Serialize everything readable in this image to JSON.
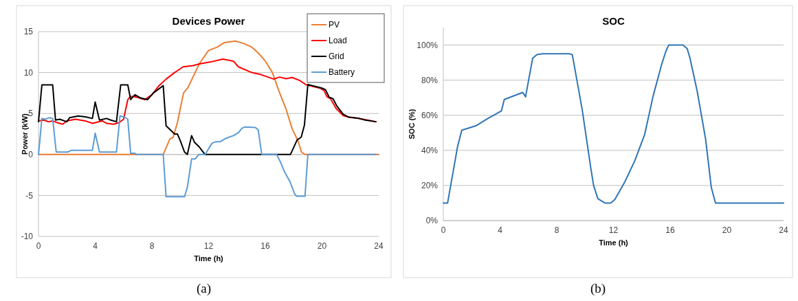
{
  "chart_data": [
    {
      "type": "line",
      "title": "Devices Power",
      "xlabel": "Time (h)",
      "ylabel": "Power (kW)",
      "xlim": [
        0,
        24
      ],
      "xticks": [
        0,
        4,
        8,
        12,
        16,
        20,
        24
      ],
      "ylim": [
        -10,
        15
      ],
      "yticks": [
        -10,
        -5,
        0,
        5,
        10,
        15
      ],
      "grid": "y",
      "legend": "top right",
      "marker": "none",
      "line_style": "solid",
      "annotations": [
        "(a)"
      ],
      "series": [
        {
          "name": "PV",
          "color": "#ed7d31",
          "x": [
            0,
            8.8,
            9.27,
            9.5,
            9.8,
            10.23,
            10.55,
            11.35,
            12.0,
            12.6,
            13.1,
            13.9,
            14.55,
            15.05,
            15.5,
            16.0,
            16.5,
            16.95,
            17.45,
            17.9,
            18.3,
            18.55,
            18.8,
            24
          ],
          "values": [
            0,
            0,
            1.9,
            2.1,
            3.9,
            7.5,
            8.2,
            11.1,
            12.7,
            13.1,
            13.65,
            13.85,
            13.5,
            13.1,
            12.4,
            11.4,
            10.0,
            7.8,
            5.6,
            3.1,
            1.7,
            0.3,
            0,
            0
          ]
        },
        {
          "name": "Load",
          "color": "#ff0000",
          "x": [
            0,
            0.37,
            0.7,
            1.0,
            1.3,
            1.7,
            2.0,
            2.6,
            3.3,
            3.8,
            4.5,
            4.8,
            5.3,
            5.7,
            6.0,
            6.3,
            6.5,
            6.9,
            7.5,
            8.0,
            8.5,
            9.0,
            9.6,
            10.2,
            10.9,
            11.35,
            12.15,
            13.0,
            13.75,
            14.1,
            15.05,
            15.7,
            16.6,
            17.0,
            17.45,
            17.9,
            18.4,
            18.9,
            19.85,
            20.15,
            20.35,
            20.6,
            21.0,
            21.5,
            21.9,
            22.6,
            23.8
          ],
          "values": [
            4.1,
            4.2,
            4.0,
            4.1,
            3.9,
            3.7,
            4.1,
            4.3,
            4.1,
            3.8,
            4.1,
            3.8,
            3.7,
            3.9,
            4.3,
            6.7,
            7.1,
            7.0,
            6.7,
            7.3,
            8.4,
            9.2,
            10.0,
            10.7,
            10.85,
            11.05,
            11.3,
            11.65,
            11.4,
            10.7,
            10.0,
            9.75,
            9.2,
            9.45,
            9.25,
            9.4,
            9.05,
            8.5,
            8.1,
            7.8,
            7.05,
            6.8,
            5.6,
            4.75,
            4.55,
            4.4,
            4.0
          ]
        },
        {
          "name": "Grid",
          "color": "#000000",
          "x": [
            0,
            0.24,
            1.0,
            1.2,
            1.5,
            2.0,
            2.2,
            2.8,
            3.3,
            3.8,
            4.0,
            4.3,
            4.8,
            5.1,
            5.5,
            5.8,
            6.3,
            6.5,
            6.8,
            7.2,
            7.7,
            8.1,
            8.8,
            9.0,
            9.6,
            9.8,
            10.0,
            10.3,
            10.5,
            10.8,
            11.0,
            11.35,
            11.75,
            17.77,
            18.0,
            18.25,
            18.53,
            18.76,
            19.0,
            20.0,
            20.25,
            20.5,
            20.78,
            21.05,
            21.5,
            21.9,
            22.6,
            23.05,
            23.8
          ],
          "values": [
            4.0,
            8.5,
            8.5,
            4.2,
            4.3,
            4.0,
            4.5,
            4.7,
            4.6,
            4.4,
            6.4,
            4.2,
            4.4,
            4.2,
            4.0,
            8.5,
            8.5,
            6.7,
            7.3,
            6.9,
            6.7,
            7.5,
            8.4,
            3.5,
            2.5,
            2.5,
            1.7,
            0.3,
            0,
            2.3,
            1.5,
            0.9,
            0,
            0,
            0.85,
            1.8,
            2.1,
            3.6,
            8.55,
            8.1,
            7.9,
            7.0,
            6.8,
            5.9,
            4.9,
            4.55,
            4.4,
            4.2,
            4.0
          ]
        },
        {
          "name": "Battery",
          "color": "#5b9bd5",
          "x": [
            0,
            0.24,
            0.48,
            0.77,
            1.0,
            1.25,
            2.05,
            2.3,
            3.8,
            4.0,
            4.3,
            5.5,
            5.75,
            6.05,
            6.3,
            6.5,
            6.8,
            6.95,
            8.8,
            9.0,
            10.3,
            10.5,
            10.8,
            11.05,
            11.3,
            11.75,
            12.25,
            12.5,
            12.8,
            13.25,
            13.75,
            14.1,
            14.35,
            14.55,
            15.3,
            15.5,
            15.75,
            16.8,
            17.05,
            17.35,
            17.75,
            18.05,
            18.2,
            18.8,
            19.0,
            23.8
          ],
          "values": [
            0,
            4.4,
            4.3,
            4.5,
            4.4,
            0.3,
            0.3,
            0.5,
            0.5,
            2.6,
            0.3,
            0.3,
            4.7,
            4.6,
            4.3,
            0.15,
            0.15,
            0,
            0,
            -5.15,
            -5.15,
            -4.0,
            -0.55,
            -0.55,
            0,
            0,
            1.4,
            1.55,
            1.55,
            2.0,
            2.3,
            2.65,
            3.2,
            3.35,
            3.3,
            3.0,
            0,
            0,
            -0.85,
            -2.1,
            -3.35,
            -4.75,
            -5.1,
            -5.1,
            0,
            0
          ]
        }
      ]
    },
    {
      "type": "line",
      "title": "SOC",
      "xlabel": "Time (h)",
      "ylabel": "SOC (%)",
      "xlim": [
        0,
        24
      ],
      "xticks": [
        0,
        4,
        8,
        12,
        16,
        20,
        24
      ],
      "ylim": [
        0,
        110
      ],
      "yticks": [
        {
          "value": 0,
          "label": "0%"
        },
        {
          "value": 20,
          "label": "20%"
        },
        {
          "value": 40,
          "label": "40%"
        },
        {
          "value": 60,
          "label": "60%"
        },
        {
          "value": 80,
          "label": "80%"
        },
        {
          "value": 100,
          "label": "100%"
        }
      ],
      "grid": "y",
      "legend": false,
      "marker": "none",
      "line_style": "solid",
      "annotations": [
        "(b)"
      ],
      "series": [
        {
          "color": "#2e75b6",
          "x": [
            0,
            0.3,
            1.0,
            1.3,
            2.3,
            3.1,
            4.1,
            4.3,
            5.6,
            5.8,
            6.3,
            6.6,
            7.0,
            8.9,
            9.1,
            9.8,
            10.4,
            10.6,
            10.9,
            11.4,
            11.8,
            12.1,
            12.8,
            13.5,
            14.2,
            14.8,
            15.4,
            15.7,
            15.9,
            16.9,
            17.2,
            17.4,
            17.9,
            18.5,
            18.9,
            19.2,
            24
          ],
          "values": [
            10,
            10,
            42,
            51.5,
            54,
            58,
            62.5,
            69,
            73,
            70.5,
            92.5,
            94.5,
            95,
            95,
            94.5,
            63,
            30,
            20,
            12.5,
            10,
            10,
            12,
            22,
            34,
            49,
            71,
            89,
            96.5,
            100,
            100,
            98,
            92.5,
            74,
            46.5,
            19,
            10,
            10
          ]
        }
      ]
    }
  ]
}
